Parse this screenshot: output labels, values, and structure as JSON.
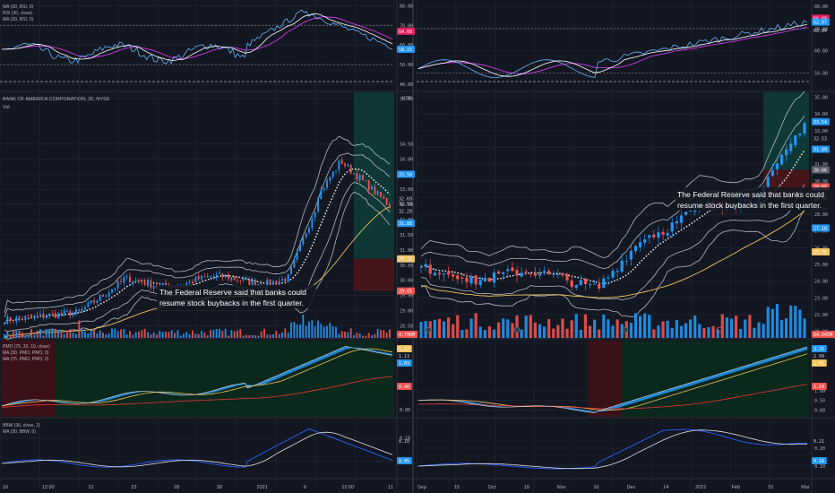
{
  "colors": {
    "bg": "#131722",
    "grid": "#1e222d",
    "border": "#2a2e39",
    "text": "#b2b5be",
    "bull": "#2196f3",
    "bear": "#ef5350",
    "bbLine": "#d1d4dc",
    "ma": "#f0c35b",
    "dashed": "#ffffff",
    "rsiMA": "#e040fb",
    "pmoRed": "#e53935",
    "pmoGreenZone": "#0b2a1d",
    "pmoRedZone": "#3a1117",
    "profit": "#0f3d3a",
    "loss": "#4a1618"
  },
  "left": {
    "rsi": {
      "legend": [
        "MA (30, RSI, 0)",
        "RSI (30, close)",
        "MA (20, RSI, 0)"
      ],
      "ticks": [
        "80.00",
        "70.00",
        "60.00",
        "50.00",
        "40.00"
      ],
      "badges": [
        "64.60",
        "58.15",
        "57.13"
      ],
      "range": [
        40,
        82
      ],
      "upper": 70,
      "lower": 50
    },
    "price": {
      "title": "BANK OF AMERICA CORPORATION, 30, NYSE",
      "sub": "Vol",
      "ticks": [
        "36.00",
        "34.50",
        "34.00",
        "33.50",
        "33.00",
        "32.50",
        "32.00",
        "31.50",
        "31.00",
        "30.50",
        "30.00",
        "29.50",
        "29.00",
        "28.50"
      ],
      "badges": [
        {
          "t": "33.50",
          "c": "bull",
          "v": 33.5
        },
        {
          "t": "32.69",
          "c": "none",
          "v": 32.69
        },
        {
          "t": "32.53",
          "c": "none",
          "v": 32.53
        },
        {
          "t": "32.29",
          "c": "none",
          "v": 32.29
        },
        {
          "t": "31.88",
          "c": "bull",
          "v": 31.88
        },
        {
          "t": "30.71",
          "c": "ma",
          "v": 30.71
        },
        {
          "t": "30.66",
          "c": "none",
          "v": 30.66
        },
        {
          "t": "29.65",
          "c": "bear",
          "v": 29.65
        }
      ],
      "volBadge": "4.796M",
      "unitLabel": "USD",
      "range": [
        28.1,
        36.2
      ],
      "annotation": [
        "The Federal Reserve said that banks could",
        "resume stock buybacks in the first quarter."
      ]
    },
    "pmo": {
      "legend": [
        "PMO (75, 30, 10, close)",
        "MA (30, PMO, PMO, 0)",
        "MA (75, PMO, PMO, 0)"
      ],
      "ticks": [
        "0.50",
        "0.00"
      ],
      "badges": [
        {
          "t": "1.22",
          "c": "ma"
        },
        {
          "t": "1.13",
          "c": "none"
        },
        {
          "t": "1.03",
          "c": "bull"
        },
        {
          "t": "0.46",
          "c": "bear"
        }
      ],
      "range": [
        -0.15,
        1.45
      ]
    },
    "bbw": {
      "legend": [
        "BBW (30, close, 2)",
        "MA (30, BBW, 0)"
      ],
      "ticks": [
        "0.10",
        "0.05"
      ],
      "badges": [
        {
          "t": "0.10",
          "c": "none"
        },
        {
          "t": "0.05",
          "c": "bull"
        }
      ],
      "range": [
        0.02,
        0.14
      ]
    },
    "xticks": [
      "16",
      "12:00",
      "21",
      "23",
      "28",
      "30",
      "2021",
      "6",
      "12:00",
      "11"
    ]
  },
  "right": {
    "rsi": {
      "ticks": [
        "80.00",
        "70.00",
        "60.00",
        "50.00"
      ],
      "badges": [
        "66.98",
        "62.97",
        "60.84"
      ],
      "range": [
        45,
        82
      ],
      "upper": 70,
      "lower": 50
    },
    "price": {
      "ticks": [
        "35.00",
        "34.00",
        "33.00",
        "32.00",
        "31.00",
        "30.00",
        "29.00",
        "28.00",
        "27.00",
        "26.00",
        "25.00",
        "24.00",
        "23.00",
        "22.00",
        "21.00"
      ],
      "badges": [
        {
          "t": "33.54",
          "c": "bull",
          "v": 33.54
        },
        {
          "t": "32.53",
          "c": "none",
          "v": 32.53
        },
        {
          "t": "31.89",
          "c": "bull",
          "v": 31.89
        },
        {
          "t": "30.71",
          "c": "none",
          "v": 30.71
        },
        {
          "t": "30.66",
          "c": "gray",
          "v": 30.66
        },
        {
          "t": "29.65",
          "c": "bear",
          "v": 29.65
        },
        {
          "t": "29.53",
          "c": "none",
          "v": 29.53
        },
        {
          "t": "28.94",
          "c": "none",
          "v": 28.94
        },
        {
          "t": "28.36",
          "c": "none",
          "v": 28.36
        },
        {
          "t": "27.18",
          "c": "bull",
          "v": 27.18
        },
        {
          "t": "25.75",
          "c": "ma",
          "v": 25.75
        }
      ],
      "volBadge": "64.045M",
      "range": [
        20.6,
        35.3
      ],
      "annotation": [
        "The Federal Reserve said that banks could",
        "resume stock buybacks in the first quarter."
      ]
    },
    "pmo": {
      "ticks": [
        "1.00",
        "0.50",
        "0.00"
      ],
      "badges": [
        {
          "t": "3.25",
          "c": "bull"
        },
        {
          "t": "2.99",
          "c": "none"
        },
        {
          "t": "2.81",
          "c": "ma"
        },
        {
          "t": "1.24",
          "c": "bear"
        }
      ],
      "range": [
        -0.35,
        3.6
      ]
    },
    "bbw": {
      "ticks": [
        "0.20",
        "0.10"
      ],
      "badges": [
        {
          "t": "0.21",
          "c": "none"
        },
        {
          "t": "0.16",
          "c": "bull"
        }
      ],
      "range": [
        0.05,
        0.36
      ]
    },
    "xticks": [
      "Sep",
      "15",
      "Oct",
      "19",
      "Nov",
      "16",
      "Dec",
      "14",
      "2021",
      "Feb",
      "15",
      "Mar"
    ]
  },
  "chart_data": [
    {
      "type": "line",
      "title": "BANK OF AMERICA CORPORATION, 30, NYSE",
      "timeframe": "30",
      "x": [
        "16",
        "12:00",
        "21",
        "23",
        "28",
        "30",
        "2021",
        "6",
        "12:00",
        "11"
      ],
      "series": [
        {
          "name": "close",
          "values": [
            28.7,
            28.8,
            29.5,
            29.8,
            30.0,
            30.1,
            30.1,
            32.2,
            33.6,
            32.6
          ]
        }
      ],
      "indicators": [
        "RSI (30, close)",
        "MA (30, RSI, 0)",
        "MA (20, RSI, 0)",
        "PMO (75, 30, 10, close)",
        "BBW (30, close, 2)"
      ]
    },
    {
      "type": "line",
      "x": [
        "Sep",
        "15",
        "Oct",
        "19",
        "Nov",
        "16",
        "Dec",
        "14",
        "2021",
        "Feb",
        "15",
        "Mar"
      ],
      "series": [
        {
          "name": "close",
          "values": [
            25.0,
            24.5,
            24.0,
            23.5,
            23.8,
            26.5,
            28.5,
            29.5,
            33.0,
            null,
            null,
            null
          ]
        }
      ]
    }
  ]
}
